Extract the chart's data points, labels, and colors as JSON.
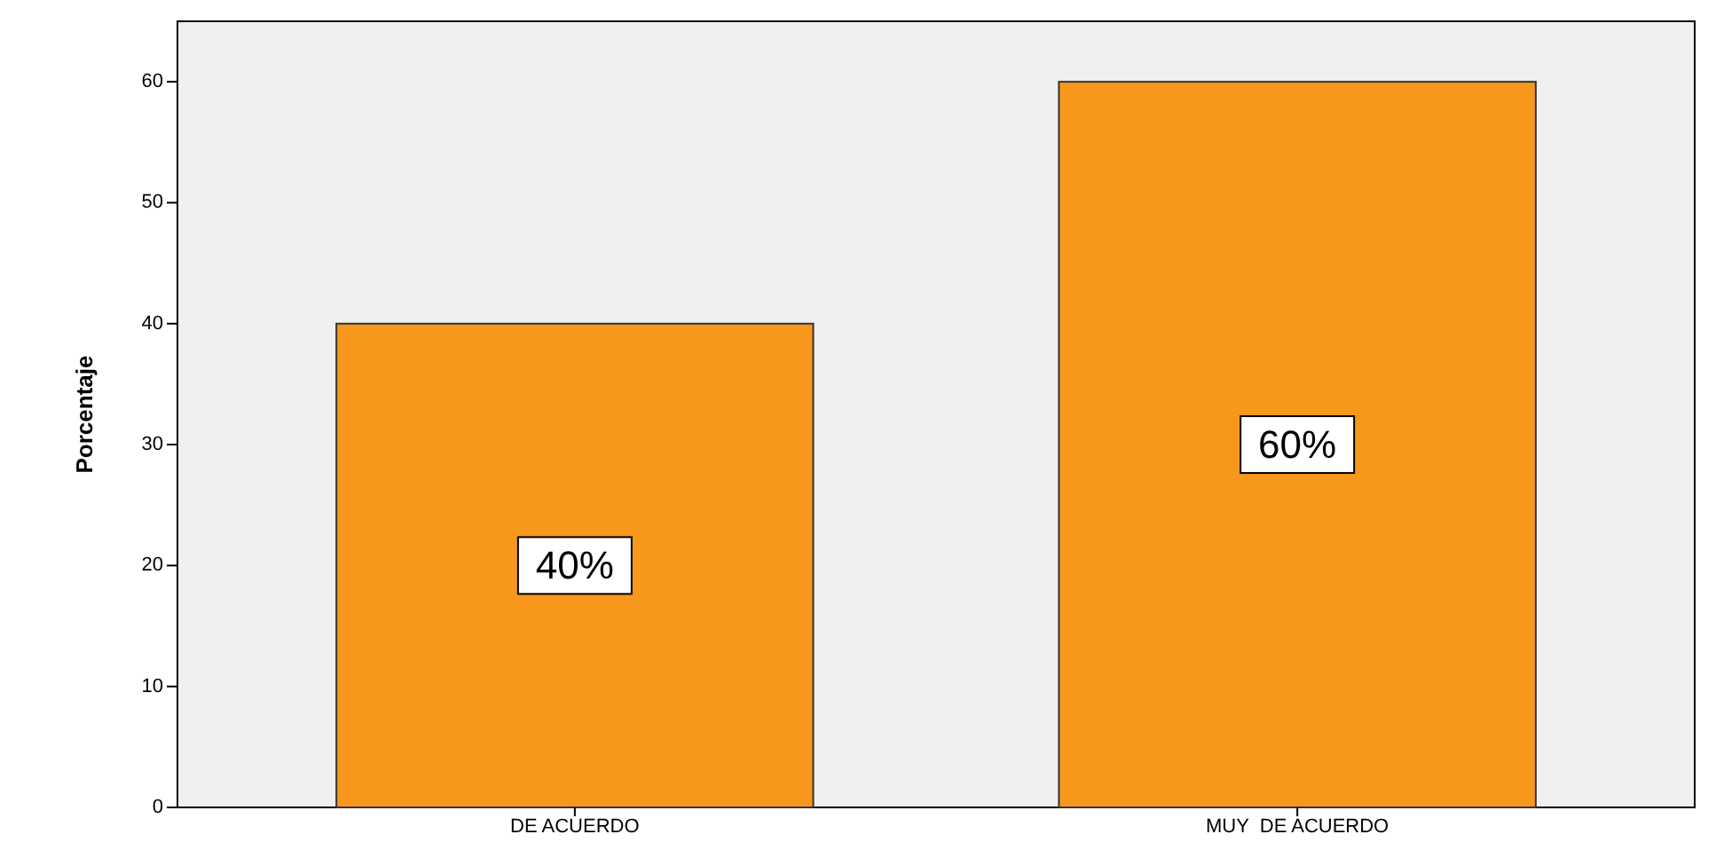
{
  "chart_data": {
    "type": "bar",
    "ylabel": "Porcentaje",
    "categories": [
      "DE ACUERDO",
      "MUY  DE ACUERDO"
    ],
    "values": [
      40,
      60
    ],
    "value_labels": [
      "40%",
      "60%"
    ],
    "color": "#f7981d",
    "ylim": [
      0,
      65
    ],
    "yticks": [
      0,
      10,
      20,
      30,
      40,
      50,
      60
    ],
    "grid": false
  }
}
